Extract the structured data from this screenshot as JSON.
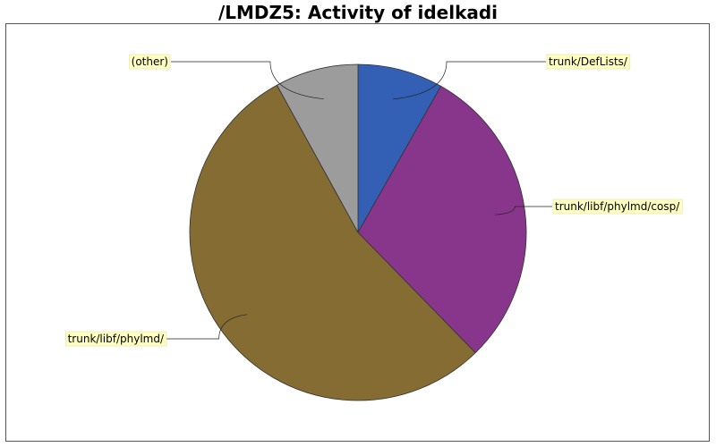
{
  "chart_data": {
    "type": "pie",
    "title": "/LMDZ5: Activity of idelkadi",
    "slices": [
      {
        "label": "trunk/DefLists/",
        "value": 8.2,
        "color": "#3360b4"
      },
      {
        "label": "trunk/libf/phylmd/cosp/",
        "value": 29.5,
        "color": "#88358c"
      },
      {
        "label": "trunk/libf/phylmd/",
        "value": 54.3,
        "color": "#846c33"
      },
      {
        "label": "(other)",
        "value": 8.0,
        "color": "#9c9c9c"
      }
    ],
    "legend": "none",
    "label_style": "callout",
    "label_background": "#ffffc0"
  }
}
